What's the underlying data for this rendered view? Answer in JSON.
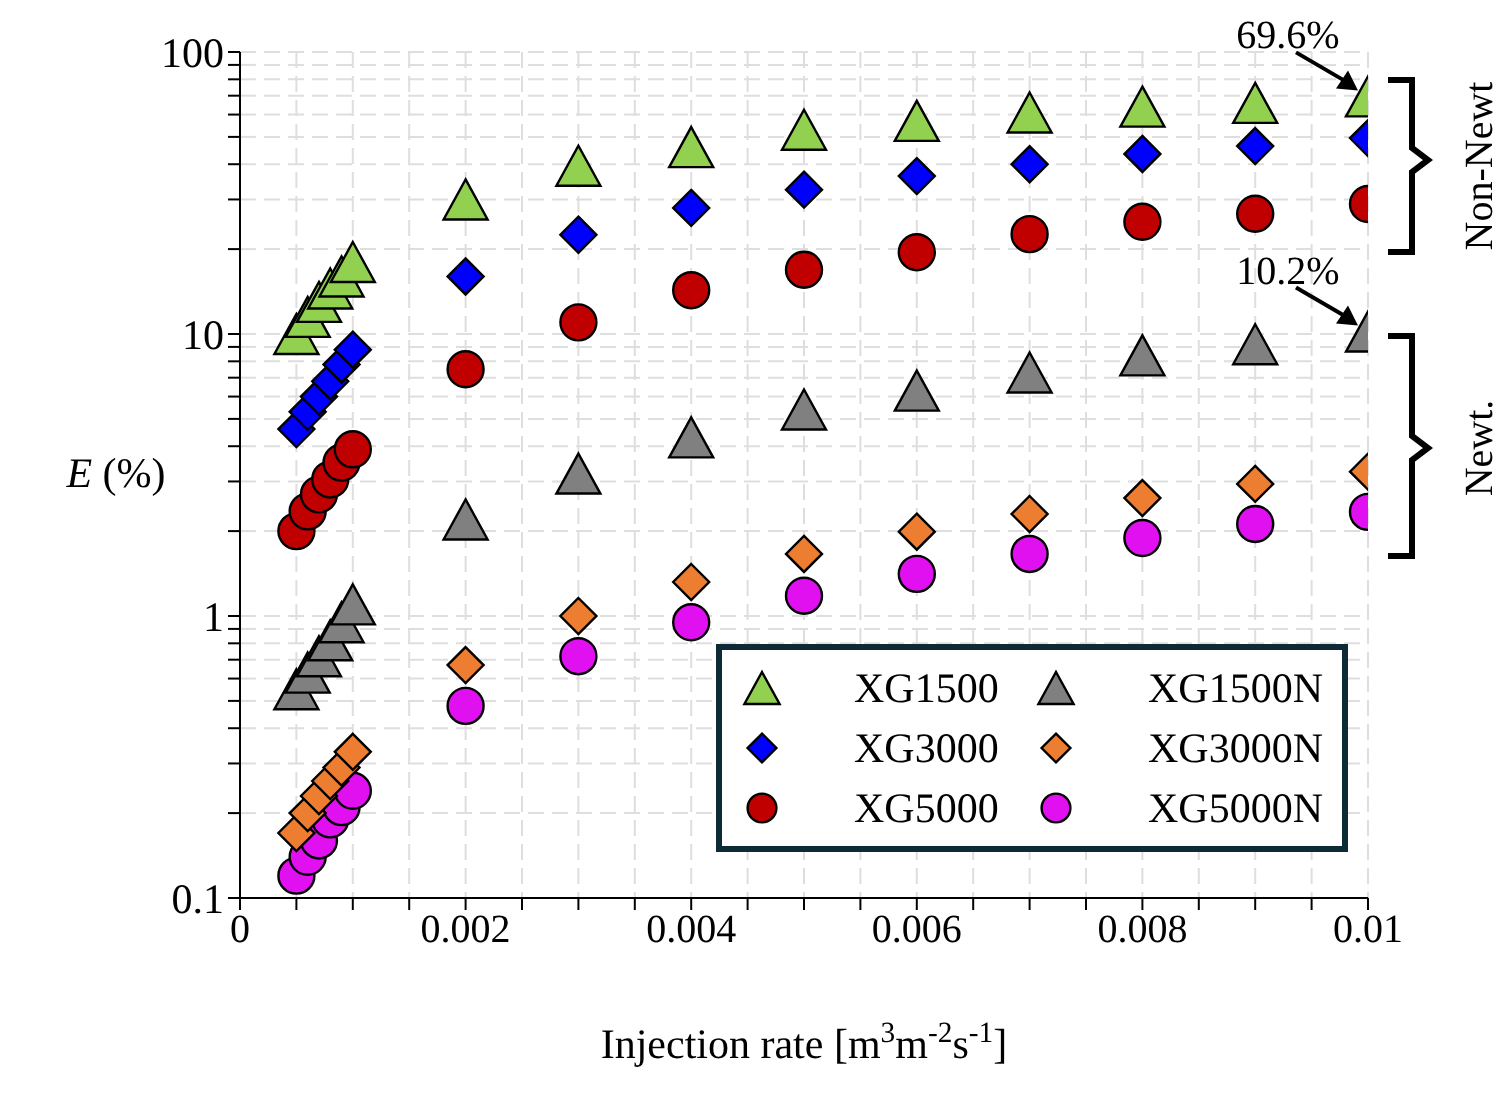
{
  "chart_data": {
    "type": "scatter",
    "xlabel": "Injection rate [m$^{3}$m$^{-2}$s$^{-1}$]",
    "ylabel": "E (%)",
    "log": "y",
    "grid": true,
    "legend": "bottom right",
    "xlim": [
      0,
      0.01
    ],
    "ylim": [
      0.1,
      100
    ],
    "xticks": [
      0,
      {
        "value": 0.0005,
        "label": null
      },
      {
        "value": 0.001,
        "label": null
      },
      {
        "value": 0.0015,
        "label": null
      },
      0.002,
      {
        "value": 0.0025,
        "label": null
      },
      {
        "value": 0.003,
        "label": null
      },
      {
        "value": 0.0035,
        "label": null
      },
      0.004,
      {
        "value": 0.0045,
        "label": null
      },
      {
        "value": 0.005,
        "label": null
      },
      {
        "value": 0.0055,
        "label": null
      },
      0.006,
      {
        "value": 0.0065,
        "label": null
      },
      {
        "value": 0.007,
        "label": null
      },
      {
        "value": 0.0075,
        "label": null
      },
      0.008,
      {
        "value": 0.0085,
        "label": null
      },
      {
        "value": 0.009,
        "label": null
      },
      {
        "value": 0.0095,
        "label": null
      },
      0.01
    ],
    "yticks": [
      0.1,
      {
        "value": 0.2,
        "label": null
      },
      {
        "value": 0.3,
        "label": null
      },
      {
        "value": 0.4,
        "label": null
      },
      {
        "value": 0.5,
        "label": null
      },
      {
        "value": 0.6,
        "label": null
      },
      {
        "value": 0.7,
        "label": null
      },
      {
        "value": 0.8,
        "label": null
      },
      {
        "value": 0.9,
        "label": null
      },
      1,
      {
        "value": 2,
        "label": null
      },
      {
        "value": 3,
        "label": null
      },
      {
        "value": 4,
        "label": null
      },
      {
        "value": 5,
        "label": null
      },
      {
        "value": 6,
        "label": null
      },
      {
        "value": 7,
        "label": null
      },
      {
        "value": 8,
        "label": null
      },
      {
        "value": 9,
        "label": null
      },
      10,
      {
        "value": 20,
        "label": null
      },
      {
        "value": 30,
        "label": null
      },
      {
        "value": 40,
        "label": null
      },
      {
        "value": 50,
        "label": null
      },
      {
        "value": 60,
        "label": null
      },
      {
        "value": 70,
        "label": null
      },
      {
        "value": 80,
        "label": null
      },
      {
        "value": 90,
        "label": null
      },
      100
    ],
    "x": [
      0.0005,
      0.0006,
      0.0007,
      0.0008,
      0.0009,
      0.001,
      0.002,
      0.003,
      0.004,
      0.005,
      0.006,
      0.007,
      0.008,
      0.009,
      0.01
    ],
    "series": [
      {
        "name": "XG1500",
        "color": "#92d050",
        "marker": "triangle",
        "values": [
          10,
          11.5,
          13,
          14.5,
          16,
          18,
          30,
          39.5,
          46,
          53,
          57,
          61,
          64,
          66,
          69.6
        ]
      },
      {
        "name": "XG3000",
        "color": "#0000ff",
        "marker": "diamond",
        "values": [
          4.6,
          5.3,
          6,
          6.8,
          7.8,
          8.8,
          16,
          22.5,
          28,
          32.5,
          36.3,
          40,
          43.5,
          46.4,
          49.5
        ]
      },
      {
        "name": "XG5000",
        "color": "#c00000",
        "marker": "circle",
        "values": [
          2,
          2.35,
          2.7,
          3.05,
          3.5,
          3.9,
          7.5,
          11,
          14.3,
          16.9,
          19.5,
          22.6,
          25,
          26.7,
          28.9
        ]
      },
      {
        "name": "XG1500N",
        "color": "#808080",
        "marker": "triangle",
        "values": [
          0.55,
          0.63,
          0.72,
          0.82,
          0.95,
          1.1,
          2.2,
          3.2,
          4.3,
          5.4,
          6.3,
          7.3,
          8.4,
          9.2,
          10.2
        ]
      },
      {
        "name": "XG3000N",
        "color": "#ed7d31",
        "marker": "diamond",
        "values": [
          0.17,
          0.2,
          0.23,
          0.26,
          0.29,
          0.33,
          0.67,
          1,
          1.32,
          1.66,
          1.99,
          2.3,
          2.62,
          2.94,
          3.25
        ]
      },
      {
        "name": "XG5000N",
        "color": "#e010f0",
        "marker": "circle",
        "values": [
          0.12,
          0.14,
          0.16,
          0.19,
          0.21,
          0.24,
          0.48,
          0.72,
          0.95,
          1.18,
          1.41,
          1.66,
          1.89,
          2.12,
          2.34
        ]
      }
    ],
    "annotations": [
      {
        "text": "69.6%",
        "x": 0.01,
        "y": 69.6
      },
      {
        "text": "10.2%",
        "x": 0.01,
        "y": 10.2
      },
      "Non-Newt",
      "Newt."
    ]
  }
}
